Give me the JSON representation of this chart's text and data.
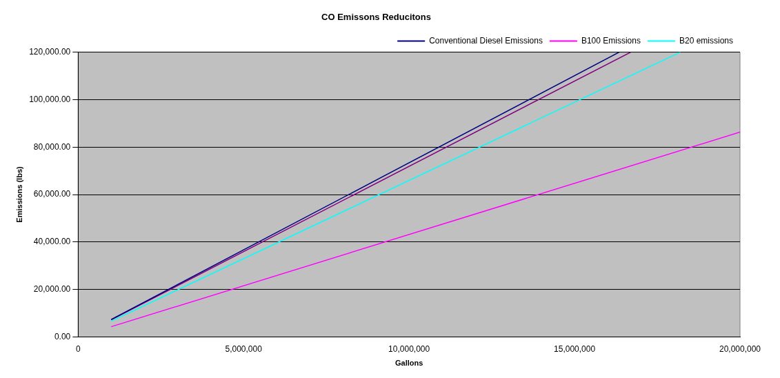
{
  "chart_data": {
    "type": "line",
    "title": "CO Emissons Reducitons",
    "xlabel": "Gallons",
    "ylabel": "Emissions (lbs)",
    "series": [
      {
        "name": "Conventional Diesel Emissions",
        "color": "#000080",
        "x": [
          1000000,
          16350000
        ],
        "values": [
          7300,
          120000
        ]
      },
      {
        "name": "B100 Emissions",
        "color": "#ff00ff",
        "x": [
          1000000,
          20000000
        ],
        "values": [
          4300,
          86300
        ]
      },
      {
        "name": "B20 emissions",
        "color": "#00ffff",
        "x": [
          1000000,
          18200000
        ],
        "values": [
          6600,
          120000
        ]
      },
      {
        "color": "#800080",
        "x": [
          1000000,
          16700000
        ],
        "values": [
          7200,
          120000
        ]
      }
    ],
    "xlim": [
      0,
      20000000
    ],
    "xticks": [
      0,
      {
        "value": 5000000,
        "label": "5,000,000"
      },
      {
        "value": 10000000,
        "label": "10,000,000"
      },
      {
        "value": 15000000,
        "label": "15,000,000"
      },
      {
        "value": 20000000,
        "label": "20,000,000"
      }
    ],
    "ylim": [
      0,
      120000
    ],
    "yticks": [
      {
        "value": 0,
        "label": "0.00"
      },
      {
        "value": 20000,
        "label": "20,000.00"
      },
      {
        "value": 40000,
        "label": "40,000.00"
      },
      {
        "value": 60000,
        "label": "60,000.00"
      },
      {
        "value": 80000,
        "label": "80,000.00"
      },
      {
        "value": 100000,
        "label": "100,000.00"
      },
      {
        "value": 120000,
        "label": "120,000.00"
      }
    ],
    "grid": "y",
    "legend": "top right",
    "marker": "none",
    "line_style": "solid"
  }
}
